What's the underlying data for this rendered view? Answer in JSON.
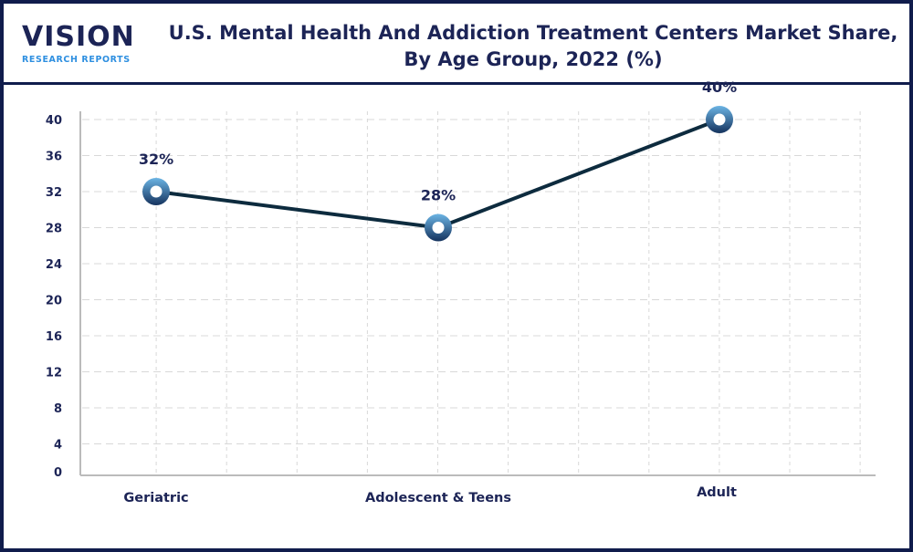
{
  "brand": {
    "name": "VISION",
    "tagline": "RESEARCH REPORTS"
  },
  "title_lines": [
    "U.S. Mental Health And Addiction Treatment Centers Market Share,",
    "By Age Group, 2022 (%)"
  ],
  "chart_data": {
    "type": "line",
    "title": "U.S. Mental Health And Addiction Treatment Centers Market Share, By Age Group, 2022 (%)",
    "categories": [
      "Geriatric",
      "Adolescent & Teens",
      "Adult"
    ],
    "values": [
      32,
      28,
      40
    ],
    "data_labels": [
      "32%",
      "28%",
      "40%"
    ],
    "yticks": [
      0,
      4,
      8,
      12,
      16,
      20,
      24,
      28,
      32,
      36,
      40
    ],
    "ylim": [
      0,
      40
    ],
    "xlabel": "",
    "ylabel": "",
    "grid": true,
    "legend": "none",
    "colors": {
      "line": "#0d2b3e",
      "marker": "#3a8fc8",
      "text": "#1c2456",
      "grid": "#d8d8d8"
    }
  }
}
